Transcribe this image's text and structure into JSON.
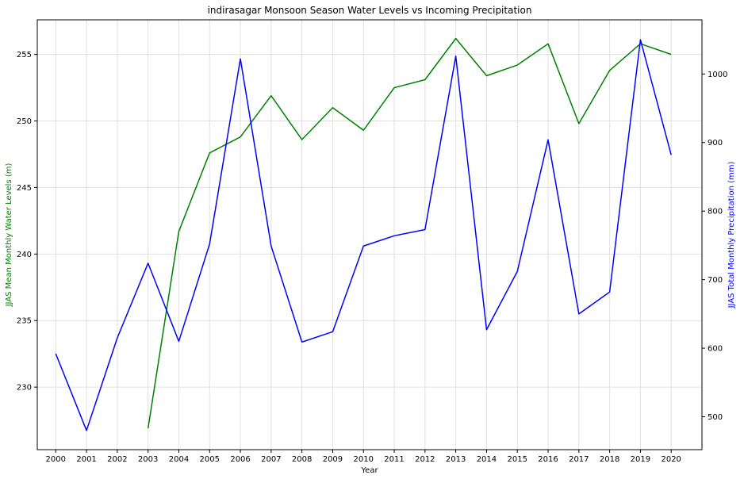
{
  "chart_data": {
    "type": "line",
    "title": "indirasagar Monsoon Season Water Levels vs Incoming Precipitation",
    "xlabel": "Year",
    "ylabel_left": "JJAS Mean Monthly Water Levels (m)",
    "ylabel_right": "JJAS Total Monthly Precipitation (mm)",
    "x": [
      2000,
      2001,
      2002,
      2003,
      2004,
      2005,
      2006,
      2007,
      2008,
      2009,
      2010,
      2011,
      2012,
      2013,
      2014,
      2015,
      2016,
      2017,
      2018,
      2019,
      2020
    ],
    "x_tick_labels": [
      "2000",
      "2001",
      "2002",
      "2003",
      "2004",
      "2005",
      "2006",
      "2007",
      "2008",
      "2009",
      "2010",
      "2011",
      "2012",
      "2013",
      "2014",
      "2015",
      "2016",
      "2017",
      "2018",
      "2019",
      "2020"
    ],
    "xlim": [
      1999.4,
      2021.0
    ],
    "ylim_left": [
      225.3,
      257.6
    ],
    "ylim_right": [
      452,
      1079
    ],
    "y_ticks_left": [
      230,
      235,
      240,
      245,
      250,
      255
    ],
    "y_tick_labels_left": [
      "230",
      "235",
      "240",
      "245",
      "250",
      "255"
    ],
    "y_ticks_right": [
      500,
      600,
      700,
      800,
      900,
      1000
    ],
    "y_tick_labels_right": [
      "500",
      "600",
      "700",
      "800",
      "900",
      "1000"
    ],
    "grid": true,
    "series": [
      {
        "axis": "left",
        "color": "#008000",
        "values": [
          null,
          null,
          null,
          226.9,
          241.7,
          247.6,
          248.8,
          251.9,
          248.6,
          251.0,
          249.3,
          252.5,
          253.1,
          256.2,
          253.4,
          254.2,
          255.8,
          249.8,
          253.8,
          255.8,
          255.0
        ]
      },
      {
        "axis": "right",
        "color": "#0000ff",
        "values": [
          592,
          480,
          615,
          724,
          610,
          752,
          1022,
          749,
          609,
          624,
          749,
          764,
          773,
          1026,
          627,
          712,
          904,
          650,
          682,
          1050,
          882
        ]
      }
    ]
  }
}
